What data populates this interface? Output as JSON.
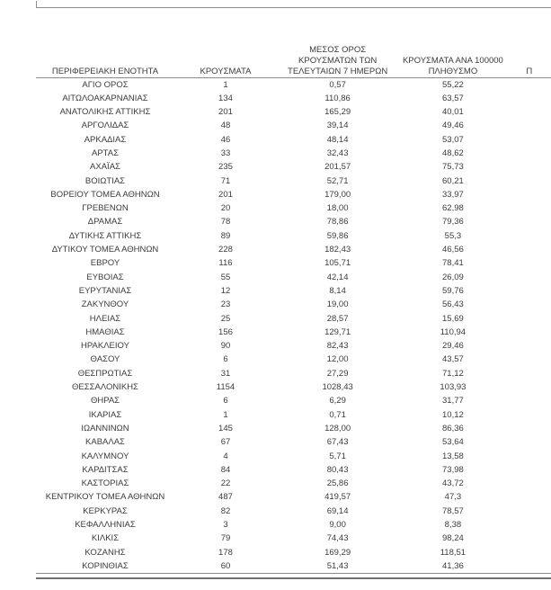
{
  "page": {
    "background": "#ffffff",
    "rule_color": "#8c8c8c",
    "bottom_rule_color": "#6e6e6e",
    "text_color": "#3b3b3b"
  },
  "table": {
    "headers": {
      "region": "ΠΕΡΙΦΕΡΕΙΑΚΗ ΕΝΟΤΗΤΑ",
      "cases": "ΚΡΟΥΣΜΑΤΑ",
      "avg7": [
        "ΜΕΣΟΣ ΟΡΟΣ",
        "ΚΡΟΥΣΜΑΤΩΝ ΤΩΝ",
        "ΤΕΛΕΥΤΑΙΩΝ 7 ΗΜΕΡΩΝ"
      ],
      "per100k": [
        "ΚΡΟΥΣΜΑΤΑ ΑΝΑ 100000",
        "ΠΛΗΘΥΣΜΟ"
      ],
      "clipped_right": "Π"
    },
    "rows": [
      {
        "region": "ΑΓΙΟ ΟΡΟΣ",
        "cases": "1",
        "avg7": "0,57",
        "per100k": "55,22"
      },
      {
        "region": "ΑΙΤΩΛΟΑΚΑΡΝΑΝΙΑΣ",
        "cases": "134",
        "avg7": "110,86",
        "per100k": "63,57"
      },
      {
        "region": "ΑΝΑΤΟΛΙΚΗΣ ΑΤΤΙΚΗΣ",
        "cases": "201",
        "avg7": "165,29",
        "per100k": "40,01"
      },
      {
        "region": "ΑΡΓΟΛΙΔΑΣ",
        "cases": "48",
        "avg7": "39,14",
        "per100k": "49,46"
      },
      {
        "region": "ΑΡΚΑΔΙΑΣ",
        "cases": "46",
        "avg7": "48,14",
        "per100k": "53,07"
      },
      {
        "region": "ΑΡΤΑΣ",
        "cases": "33",
        "avg7": "32,43",
        "per100k": "48,62"
      },
      {
        "region": "ΑΧΑΪΑΣ",
        "cases": "235",
        "avg7": "201,57",
        "per100k": "75,73"
      },
      {
        "region": "ΒΟΙΩΤΙΑΣ",
        "cases": "71",
        "avg7": "52,71",
        "per100k": "60,21"
      },
      {
        "region": "ΒΟΡΕΙΟΥ ΤΟΜΕΑ ΑΘΗΝΩΝ",
        "cases": "201",
        "avg7": "179,00",
        "per100k": "33,97"
      },
      {
        "region": "ΓΡΕΒΕΝΩΝ",
        "cases": "20",
        "avg7": "18,00",
        "per100k": "62,98"
      },
      {
        "region": "ΔΡΑΜΑΣ",
        "cases": "78",
        "avg7": "78,86",
        "per100k": "79,36"
      },
      {
        "region": "ΔΥΤΙΚΗΣ ΑΤΤΙΚΗΣ",
        "cases": "89",
        "avg7": "59,86",
        "per100k": "55,3"
      },
      {
        "region": "ΔΥΤΙΚΟΥ ΤΟΜΕΑ ΑΘΗΝΩΝ",
        "cases": "228",
        "avg7": "182,43",
        "per100k": "46,56"
      },
      {
        "region": "ΕΒΡΟΥ",
        "cases": "116",
        "avg7": "105,71",
        "per100k": "78,41"
      },
      {
        "region": "ΕΥΒΟΙΑΣ",
        "cases": "55",
        "avg7": "42,14",
        "per100k": "26,09"
      },
      {
        "region": "ΕΥΡΥΤΑΝΙΑΣ",
        "cases": "12",
        "avg7": "8,14",
        "per100k": "59,76"
      },
      {
        "region": "ΖΑΚΥΝΘΟΥ",
        "cases": "23",
        "avg7": "19,00",
        "per100k": "56,43"
      },
      {
        "region": "ΗΛΕΙΑΣ",
        "cases": "25",
        "avg7": "28,57",
        "per100k": "15,69"
      },
      {
        "region": "ΗΜΑΘΙΑΣ",
        "cases": "156",
        "avg7": "129,71",
        "per100k": "110,94"
      },
      {
        "region": "ΗΡΑΚΛΕΙΟΥ",
        "cases": "90",
        "avg7": "82,43",
        "per100k": "29,46"
      },
      {
        "region": "ΘΑΣΟΥ",
        "cases": "6",
        "avg7": "12,00",
        "per100k": "43,57"
      },
      {
        "region": "ΘΕΣΠΡΩΤΙΑΣ",
        "cases": "31",
        "avg7": "27,29",
        "per100k": "71,12"
      },
      {
        "region": "ΘΕΣΣΑΛΟΝΙΚΗΣ",
        "cases": "1154",
        "avg7": "1028,43",
        "per100k": "103,93"
      },
      {
        "region": "ΘΗΡΑΣ",
        "cases": "6",
        "avg7": "6,29",
        "per100k": "31,77"
      },
      {
        "region": "ΙΚΑΡΙΑΣ",
        "cases": "1",
        "avg7": "0,71",
        "per100k": "10,12"
      },
      {
        "region": "ΙΩΑΝΝΙΝΩΝ",
        "cases": "145",
        "avg7": "128,00",
        "per100k": "86,36"
      },
      {
        "region": "ΚΑΒΑΛΑΣ",
        "cases": "67",
        "avg7": "67,43",
        "per100k": "53,64"
      },
      {
        "region": "ΚΑΛΥΜΝΟΥ",
        "cases": "4",
        "avg7": "5,71",
        "per100k": "13,58"
      },
      {
        "region": "ΚΑΡΔΙΤΣΑΣ",
        "cases": "84",
        "avg7": "80,43",
        "per100k": "73,98"
      },
      {
        "region": "ΚΑΣΤΟΡΙΑΣ",
        "cases": "22",
        "avg7": "25,86",
        "per100k": "43,72"
      },
      {
        "region": "ΚΕΝΤΡΙΚΟΥ ΤΟΜΕΑ ΑΘΗΝΩΝ",
        "cases": "487",
        "avg7": "419,57",
        "per100k": "47,3"
      },
      {
        "region": "ΚΕΡΚΥΡΑΣ",
        "cases": "82",
        "avg7": "69,14",
        "per100k": "78,57"
      },
      {
        "region": "ΚΕΦΑΛΛΗΝΙΑΣ",
        "cases": "3",
        "avg7": "9,00",
        "per100k": "8,38"
      },
      {
        "region": "ΚΙΛΚΙΣ",
        "cases": "79",
        "avg7": "74,43",
        "per100k": "98,24"
      },
      {
        "region": "ΚΟΖΑΝΗΣ",
        "cases": "178",
        "avg7": "169,29",
        "per100k": "118,51"
      },
      {
        "region": "ΚΟΡΙΝΘΙΑΣ",
        "cases": "60",
        "avg7": "51,43",
        "per100k": "41,36"
      }
    ]
  }
}
